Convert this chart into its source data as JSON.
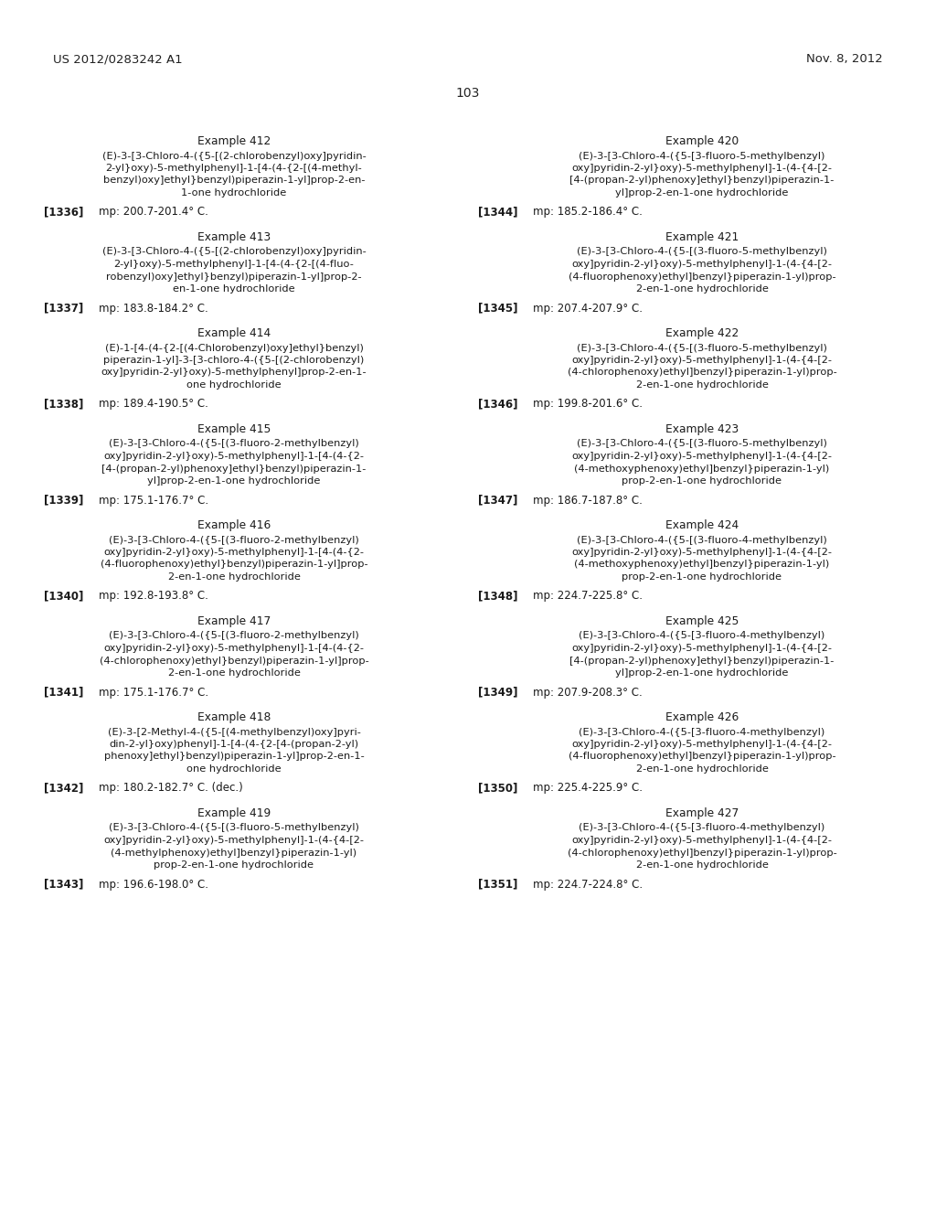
{
  "bg_color": "#ffffff",
  "header_left": "US 2012/0283242 A1",
  "header_right": "Nov. 8, 2012",
  "page_number": "103",
  "entries_col0": [
    {
      "example": "Example 412",
      "lines": [
        "(E)-3-[3-Chloro-4-({5-[(2-chlorobenzyl)oxy]pyridin-",
        "2-yl}oxy)-5-methylphenyl]-1-[4-(4-{2-[(4-methyl-",
        "benzyl)oxy]ethyl}benzyl)piperazin-1-yl]prop-2-en-",
        "1-one hydrochloride"
      ],
      "ref": "[1336]",
      "mp": "mp: 200.7-201.4° C."
    },
    {
      "example": "Example 413",
      "lines": [
        "(E)-3-[3-Chloro-4-({5-[(2-chlorobenzyl)oxy]pyridin-",
        "2-yl}oxy)-5-methylphenyl]-1-[4-(4-{2-[(4-fluo-",
        "robenzyl)oxy]ethyl}benzyl)piperazin-1-yl]prop-2-",
        "en-1-one hydrochloride"
      ],
      "ref": "[1337]",
      "mp": "mp: 183.8-184.2° C."
    },
    {
      "example": "Example 414",
      "lines": [
        "(E)-1-[4-(4-{2-[(4-Chlorobenzyl)oxy]ethyl}benzyl)",
        "piperazin-1-yl]-3-[3-chloro-4-({5-[(2-chlorobenzyl)",
        "oxy]pyridin-2-yl}oxy)-5-methylphenyl]prop-2-en-1-",
        "one hydrochloride"
      ],
      "ref": "[1338]",
      "mp": "mp: 189.4-190.5° C."
    },
    {
      "example": "Example 415",
      "lines": [
        "(E)-3-[3-Chloro-4-({5-[(3-fluoro-2-methylbenzyl)",
        "oxy]pyridin-2-yl}oxy)-5-methylphenyl]-1-[4-(4-{2-",
        "[4-(propan-2-yl)phenoxy]ethyl}benzyl)piperazin-1-",
        "yl]prop-2-en-1-one hydrochloride"
      ],
      "ref": "[1339]",
      "mp": "mp: 175.1-176.7° C."
    },
    {
      "example": "Example 416",
      "lines": [
        "(E)-3-[3-Chloro-4-({5-[(3-fluoro-2-methylbenzyl)",
        "oxy]pyridin-2-yl}oxy)-5-methylphenyl]-1-[4-(4-{2-",
        "(4-fluorophenoxy)ethyl}benzyl)piperazin-1-yl]prop-",
        "2-en-1-one hydrochloride"
      ],
      "ref": "[1340]",
      "mp": "mp: 192.8-193.8° C."
    },
    {
      "example": "Example 417",
      "lines": [
        "(E)-3-[3-Chloro-4-({5-[(3-fluoro-2-methylbenzyl)",
        "oxy]pyridin-2-yl}oxy)-5-methylphenyl]-1-[4-(4-{2-",
        "(4-chlorophenoxy)ethyl}benzyl)piperazin-1-yl]prop-",
        "2-en-1-one hydrochloride"
      ],
      "ref": "[1341]",
      "mp": "mp: 175.1-176.7° C."
    },
    {
      "example": "Example 418",
      "lines": [
        "(E)-3-[2-Methyl-4-({5-[(4-methylbenzyl)oxy]pyri-",
        "din-2-yl}oxy)phenyl]-1-[4-(4-{2-[4-(propan-2-yl)",
        "phenoxy]ethyl}benzyl)piperazin-1-yl]prop-2-en-1-",
        "one hydrochloride"
      ],
      "ref": "[1342]",
      "mp": "mp: 180.2-182.7° C. (dec.)"
    },
    {
      "example": "Example 419",
      "lines": [
        "(E)-3-[3-Chloro-4-({5-[(3-fluoro-5-methylbenzyl)",
        "oxy]pyridin-2-yl}oxy)-5-methylphenyl]-1-(4-{4-[2-",
        "(4-methylphenoxy)ethyl]benzyl}piperazin-1-yl)",
        "prop-2-en-1-one hydrochloride"
      ],
      "ref": "[1343]",
      "mp": "mp: 196.6-198.0° C."
    }
  ],
  "entries_col1": [
    {
      "example": "Example 420",
      "lines": [
        "(E)-3-[3-Chloro-4-({5-[3-fluoro-5-methylbenzyl)",
        "oxy]pyridin-2-yl}oxy)-5-methylphenyl]-1-(4-{4-[2-",
        "[4-(propan-2-yl)phenoxy]ethyl}benzyl)piperazin-1-",
        "yl]prop-2-en-1-one hydrochloride"
      ],
      "ref": "[1344]",
      "mp": "mp: 185.2-186.4° C."
    },
    {
      "example": "Example 421",
      "lines": [
        "(E)-3-[3-Chloro-4-({5-[(3-fluoro-5-methylbenzyl)",
        "oxy]pyridin-2-yl}oxy)-5-methylphenyl]-1-(4-{4-[2-",
        "(4-fluorophenoxy)ethyl]benzyl}piperazin-1-yl)prop-",
        "2-en-1-one hydrochloride"
      ],
      "ref": "[1345]",
      "mp": "mp: 207.4-207.9° C."
    },
    {
      "example": "Example 422",
      "lines": [
        "(E)-3-[3-Chloro-4-({5-[(3-fluoro-5-methylbenzyl)",
        "oxy]pyridin-2-yl}oxy)-5-methylphenyl]-1-(4-{4-[2-",
        "(4-chlorophenoxy)ethyl]benzyl}piperazin-1-yl)prop-",
        "2-en-1-one hydrochloride"
      ],
      "ref": "[1346]",
      "mp": "mp: 199.8-201.6° C."
    },
    {
      "example": "Example 423",
      "lines": [
        "(E)-3-[3-Chloro-4-({5-[(3-fluoro-5-methylbenzyl)",
        "oxy]pyridin-2-yl}oxy)-5-methylphenyl]-1-(4-{4-[2-",
        "(4-methoxyphenoxy)ethyl]benzyl}piperazin-1-yl)",
        "prop-2-en-1-one hydrochloride"
      ],
      "ref": "[1347]",
      "mp": "mp: 186.7-187.8° C."
    },
    {
      "example": "Example 424",
      "lines": [
        "(E)-3-[3-Chloro-4-({5-[(3-fluoro-4-methylbenzyl)",
        "oxy]pyridin-2-yl}oxy)-5-methylphenyl]-1-(4-{4-[2-",
        "(4-methoxyphenoxy)ethyl]benzyl}piperazin-1-yl)",
        "prop-2-en-1-one hydrochloride"
      ],
      "ref": "[1348]",
      "mp": "mp: 224.7-225.8° C."
    },
    {
      "example": "Example 425",
      "lines": [
        "(E)-3-[3-Chloro-4-({5-[3-fluoro-4-methylbenzyl)",
        "oxy]pyridin-2-yl}oxy)-5-methylphenyl]-1-(4-{4-[2-",
        "[4-(propan-2-yl)phenoxy]ethyl}benzyl)piperazin-1-",
        "yl]prop-2-en-1-one hydrochloride"
      ],
      "ref": "[1349]",
      "mp": "mp: 207.9-208.3° C."
    },
    {
      "example": "Example 426",
      "lines": [
        "(E)-3-[3-Chloro-4-({5-[3-fluoro-4-methylbenzyl)",
        "oxy]pyridin-2-yl}oxy)-5-methylphenyl]-1-(4-{4-[2-",
        "(4-fluorophenoxy)ethyl]benzyl}piperazin-1-yl)prop-",
        "2-en-1-one hydrochloride"
      ],
      "ref": "[1350]",
      "mp": "mp: 225.4-225.9° C."
    },
    {
      "example": "Example 427",
      "lines": [
        "(E)-3-[3-Chloro-4-({5-[3-fluoro-4-methylbenzyl)",
        "oxy]pyridin-2-yl}oxy)-5-methylphenyl]-1-(4-{4-[2-",
        "(4-chlorophenoxy)ethyl]benzyl}piperazin-1-yl)prop-",
        "2-en-1-one hydrochloride"
      ],
      "ref": "[1351]",
      "mp": "mp: 224.7-224.8° C."
    }
  ]
}
